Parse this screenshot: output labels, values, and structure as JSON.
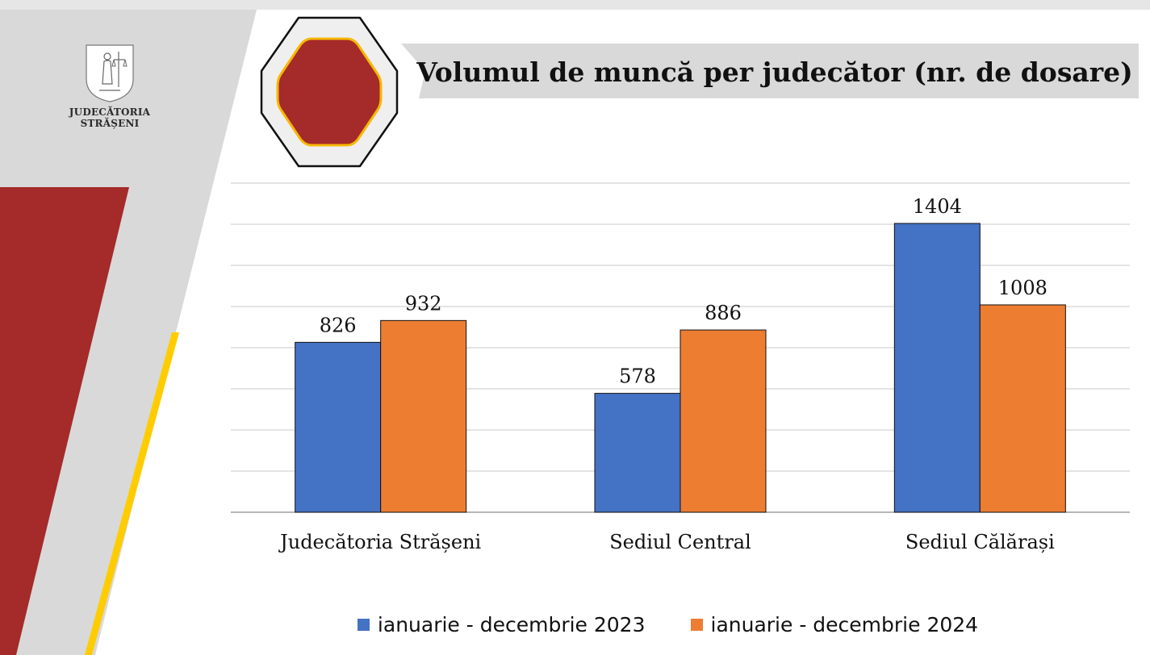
{
  "header": {
    "org_name_line1": "JUDECĂTORIA",
    "org_name_line2": "STRĂȘENI",
    "title": "Volumul de muncă per judecător (nr. de dosare)"
  },
  "colors": {
    "series_2023": "#4472C4",
    "series_2024": "#ED7D31",
    "brand_red": "#A52A2A",
    "accent_yellow": "#FFCC00",
    "panel_gray": "#D9D9D9"
  },
  "chart_data": {
    "type": "bar",
    "title": "Volumul de muncă per judecător (nr. de dosare)",
    "categories": [
      "Judecătoria Strășeni",
      "Sediul Central",
      "Sediul Călărași"
    ],
    "series": [
      {
        "name": "ianuarie - decembrie 2023",
        "values": [
          826,
          578,
          1404
        ]
      },
      {
        "name": "ianuarie - decembrie 2024",
        "values": [
          932,
          886,
          1008
        ]
      }
    ],
    "xlabel": "",
    "ylabel": "",
    "ylim": [
      0,
      1600
    ],
    "grid": true,
    "legend": "bottom"
  }
}
